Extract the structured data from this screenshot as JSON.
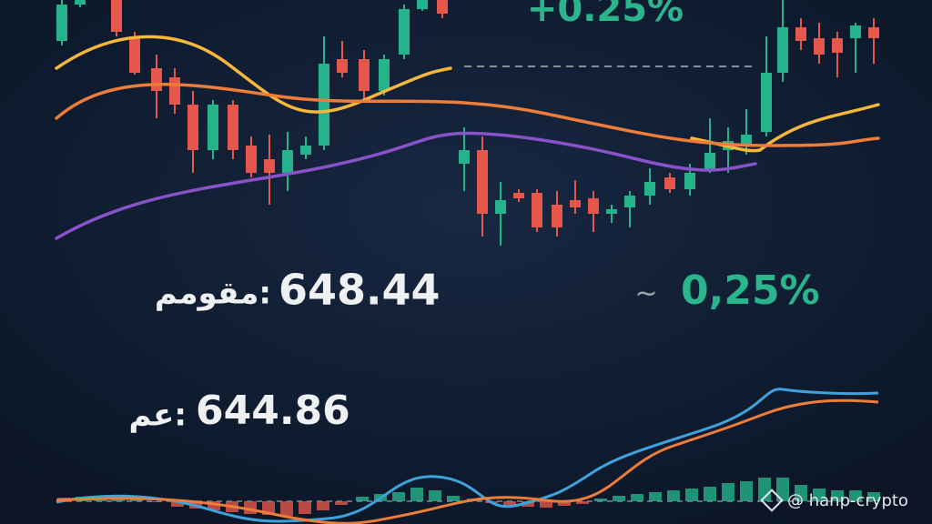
{
  "header": {
    "change_top": "+0.25%"
  },
  "stats": {
    "close_label": "مقومم:",
    "close_value": "648.44",
    "change_icon": "~",
    "change_value": "0,25%",
    "open_label": "عم:",
    "open_value": "644.86"
  },
  "watermark": "@ hanp-crypto"
}
